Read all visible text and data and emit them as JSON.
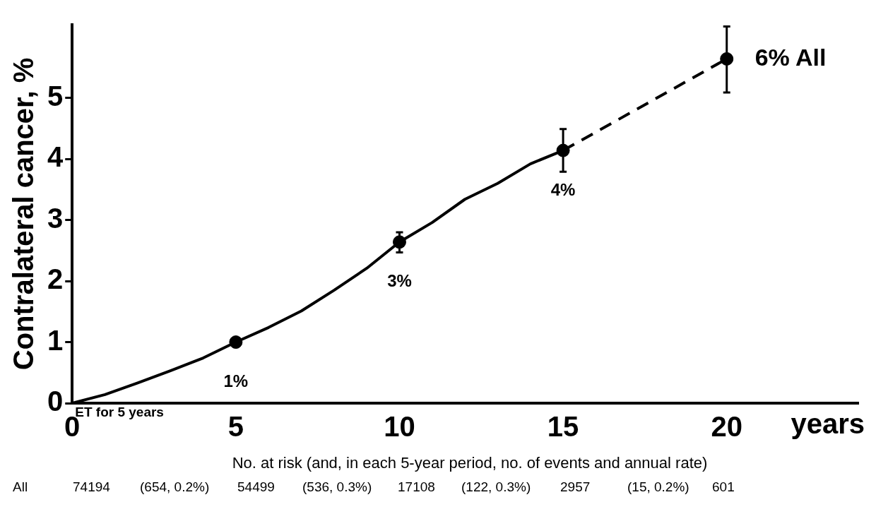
{
  "chart_data": {
    "type": "line",
    "ylabel": "Contralateral cancer, %",
    "xlabel": "years",
    "xlim": [
      0,
      24
    ],
    "xticks": [
      0,
      5,
      10,
      15,
      20
    ],
    "ylim": [
      0,
      6.2
    ],
    "yticks": [
      0,
      1,
      2,
      3,
      4,
      5
    ],
    "grid": false,
    "legend": false,
    "series": [
      {
        "type": "line",
        "color": "#000000",
        "line_style": "solid",
        "marker": "none",
        "x": [
          0,
          1,
          2,
          3,
          4,
          5,
          6,
          7,
          8,
          9,
          10,
          11,
          12,
          13,
          14,
          15
        ],
        "values": [
          0,
          0.14,
          0.33,
          0.53,
          0.74,
          1.0,
          1.24,
          1.51,
          1.85,
          2.21,
          2.64,
          2.96,
          3.34,
          3.6,
          3.92,
          4.14
        ]
      },
      {
        "type": "line",
        "color": "#000000",
        "line_style": "dashed",
        "marker": "none",
        "x": [
          15,
          20
        ],
        "values": [
          4.14,
          5.64
        ]
      },
      {
        "type": "scatter",
        "name": "All",
        "color": "#000000",
        "marker": "circle",
        "x": [
          5,
          10,
          15,
          20
        ],
        "values": [
          1.0,
          2.64,
          4.14,
          5.64
        ],
        "errors": [
          null,
          [
            2.47,
            2.8
          ],
          [
            3.79,
            4.49
          ],
          [
            5.09,
            6.17
          ]
        ],
        "value_labels": [
          "1%",
          "3%",
          "4%",
          "6%"
        ]
      }
    ],
    "annotations": [
      "ET for 5 years",
      "No. at risk (and, in each 5-year period, no. of events and annual rate)",
      "All",
      "74194",
      "(654, 0.2%)",
      "54499",
      "(536, 0.3%)",
      "17108",
      "(122, 0.3%)",
      "2957",
      "(15, 0.2%)",
      "601"
    ]
  }
}
